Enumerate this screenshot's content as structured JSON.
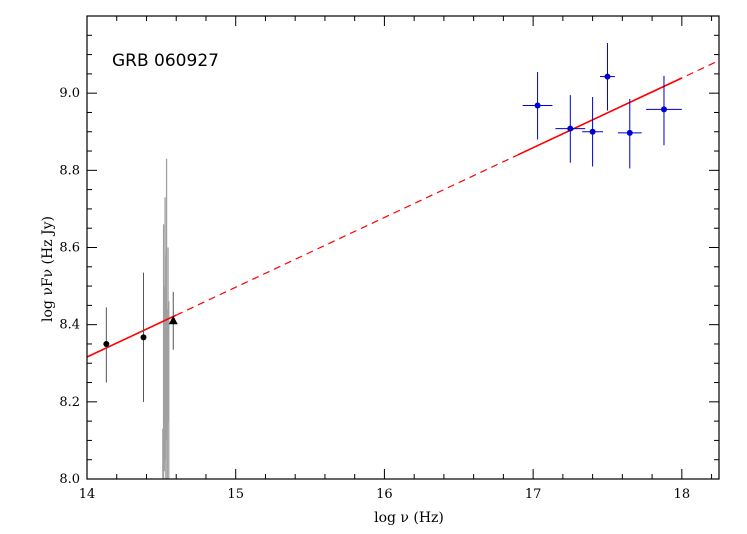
{
  "chart_data": {
    "type": "scatter",
    "title": "GRB 060927",
    "xlabel": "log ν (Hz)",
    "ylabel": "log νFν (Hz Jy)",
    "xlim": [
      14,
      18.25
    ],
    "ylim": [
      8.0,
      9.2
    ],
    "x_ticks": [
      "14",
      "15",
      "16",
      "17",
      "18"
    ],
    "y_ticks": [
      "8.0",
      "8.2",
      "8.4",
      "8.6",
      "8.8",
      "9.0"
    ],
    "grid": false,
    "colors": {
      "xray": "#0000cc",
      "fit": "#ff0000",
      "optical": "#000000",
      "spectrum": "#a0a0a0"
    },
    "series": [
      {
        "marker": "circle",
        "color": "#000000",
        "points": [
          {
            "x": 14.13,
            "y": 8.35,
            "ylo": 8.25,
            "yhi": 8.445
          },
          {
            "x": 14.38,
            "y": 8.367,
            "ylo": 8.2,
            "yhi": 8.535
          }
        ]
      },
      {
        "marker": "triangle",
        "color": "#000000",
        "points": [
          {
            "x": 14.58,
            "y": 8.41,
            "ylo": 8.335,
            "yhi": 8.485
          }
        ]
      },
      {
        "marker": "circle",
        "color": "#0000cc",
        "points": [
          {
            "x": 17.03,
            "y": 8.968,
            "xlo": 16.93,
            "xhi": 17.13,
            "ylo": 8.88,
            "yhi": 9.055
          },
          {
            "x": 17.25,
            "y": 8.908,
            "xlo": 17.15,
            "xhi": 17.35,
            "ylo": 8.82,
            "yhi": 8.995
          },
          {
            "x": 17.4,
            "y": 8.9,
            "xlo": 17.33,
            "xhi": 17.47,
            "ylo": 8.81,
            "yhi": 8.99
          },
          {
            "x": 17.5,
            "y": 9.043,
            "xlo": 17.45,
            "xhi": 17.55,
            "ylo": 8.955,
            "yhi": 9.13
          },
          {
            "x": 17.65,
            "y": 8.897,
            "xlo": 17.57,
            "xhi": 17.73,
            "ylo": 8.805,
            "yhi": 8.985
          },
          {
            "x": 17.88,
            "y": 8.958,
            "xlo": 17.76,
            "xhi": 18.0,
            "ylo": 8.865,
            "yhi": 9.045
          }
        ]
      }
    ],
    "spectrum_bars": [
      {
        "x": 14.51,
        "ylo": 8.0,
        "yhi": 8.13
      },
      {
        "x": 14.515,
        "ylo": 8.0,
        "yhi": 8.66
      },
      {
        "x": 14.52,
        "ylo": 8.02,
        "yhi": 8.5
      },
      {
        "x": 14.525,
        "ylo": 8.05,
        "yhi": 8.73
      },
      {
        "x": 14.53,
        "ylo": 8.0,
        "yhi": 8.58
      },
      {
        "x": 14.535,
        "ylo": 8.1,
        "yhi": 8.83
      },
      {
        "x": 14.54,
        "ylo": 8.0,
        "yhi": 8.44
      },
      {
        "x": 14.545,
        "ylo": 8.15,
        "yhi": 8.6
      },
      {
        "x": 14.55,
        "ylo": 8.0,
        "yhi": 8.46
      }
    ],
    "fit": {
      "slope": 0.1808,
      "intercept": 5.785,
      "solid_segments": [
        [
          14.0,
          14.6
        ],
        [
          16.9,
          18.0
        ]
      ],
      "dashed_range": [
        14.6,
        18.25
      ]
    }
  }
}
